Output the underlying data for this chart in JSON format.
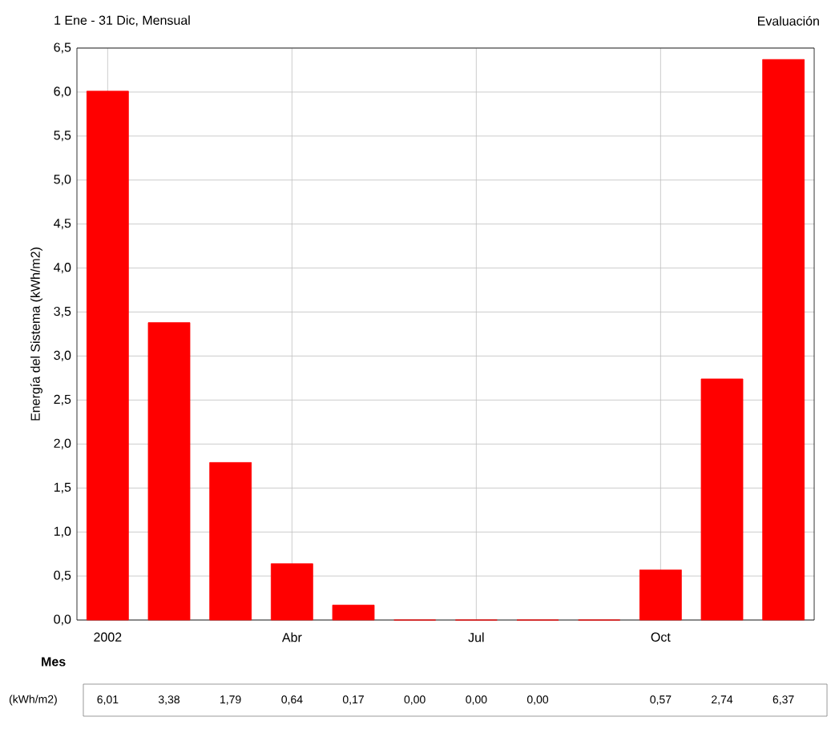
{
  "chart_data": {
    "type": "bar",
    "title": "1 Ene - 31 Dic, Mensual",
    "subtitle": "Evaluación",
    "ylabel": "Energía del Sistema (kWh/m2)",
    "xlabel": "Mes",
    "categories": [
      "2002",
      null,
      null,
      "Abr",
      null,
      null,
      "Jul",
      null,
      null,
      "Oct",
      null,
      null
    ],
    "values": [
      6.01,
      3.38,
      1.79,
      0.64,
      0.17,
      0,
      0,
      0,
      0,
      0.57,
      2.74,
      6.37
    ],
    "value_labels": [
      "6,01",
      "3,38",
      "1,79",
      "0,64",
      "0,17",
      "0,00",
      "0,00",
      "0,00",
      null,
      "0,57",
      "2,74",
      "6,37"
    ],
    "color": "#ff0000",
    "ylim": [
      0,
      6.5
    ],
    "yticks": [
      {
        "value": 0,
        "label": "0,0"
      },
      {
        "value": 0.5,
        "label": "0,5"
      },
      {
        "value": 1,
        "label": "1,0"
      },
      {
        "value": 1.5,
        "label": "1,5"
      },
      {
        "value": 2,
        "label": "2,0"
      },
      {
        "value": 2.5,
        "label": "2,5"
      },
      {
        "value": 3,
        "label": "3,0"
      },
      {
        "value": 3.5,
        "label": "3,5"
      },
      {
        "value": 4,
        "label": "4,0"
      },
      {
        "value": 4.5,
        "label": "4,5"
      },
      {
        "value": 5,
        "label": "5,0"
      },
      {
        "value": 5.5,
        "label": "5,5"
      },
      {
        "value": 6,
        "label": "6,0"
      },
      {
        "value": 6.5,
        "label": "6,5"
      }
    ],
    "grid": true,
    "annotations": [
      "(kWh/m2)"
    ]
  }
}
